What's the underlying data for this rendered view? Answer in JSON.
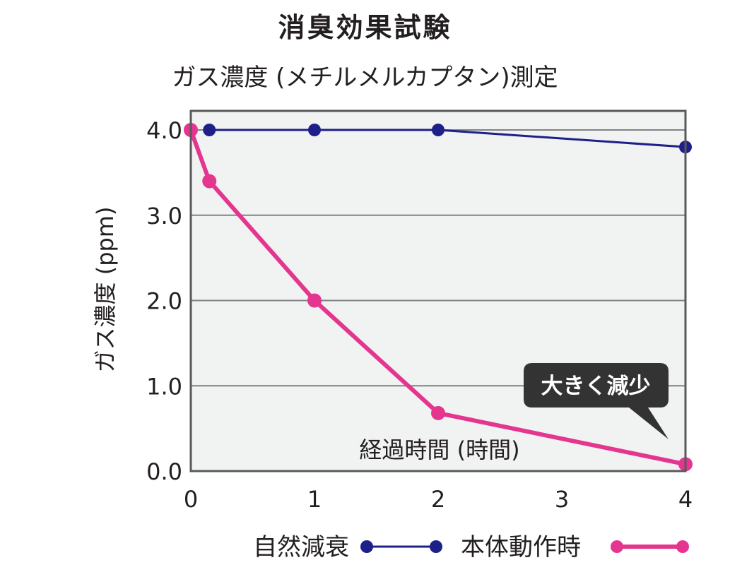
{
  "chart_data": {
    "type": "line",
    "title": "消臭効果試験",
    "subtitle": "ガス濃度 (メチルメルカプタン)測定",
    "xlabel": "経過時間 (時間)",
    "ylabel": "ガス濃度 (ppm)",
    "xlim": [
      0,
      4
    ],
    "ylim": [
      0,
      4
    ],
    "x_ticks": [
      "0",
      "1",
      "2",
      "3",
      "4"
    ],
    "y_ticks": [
      "0.0",
      "1.0",
      "2.0",
      "3.0",
      "4.0"
    ],
    "grid": "horizontal",
    "legend_position": "bottom",
    "series": [
      {
        "name": "自然減衰",
        "color": "#1d2088",
        "points": [
          {
            "x": 0.15,
            "y": 4.0
          },
          {
            "x": 1.0,
            "y": 4.0
          },
          {
            "x": 2.0,
            "y": 4.0
          },
          {
            "x": 4.0,
            "y": 3.8
          }
        ]
      },
      {
        "name": "本体動作時",
        "color": "#e4368f",
        "points": [
          {
            "x": 0.0,
            "y": 4.0
          },
          {
            "x": 0.15,
            "y": 3.4
          },
          {
            "x": 1.0,
            "y": 2.0
          },
          {
            "x": 2.0,
            "y": 0.68
          },
          {
            "x": 4.0,
            "y": 0.08
          }
        ]
      }
    ],
    "annotation": {
      "text": "大きく減少",
      "x": 4.0,
      "y": 0.08
    }
  }
}
